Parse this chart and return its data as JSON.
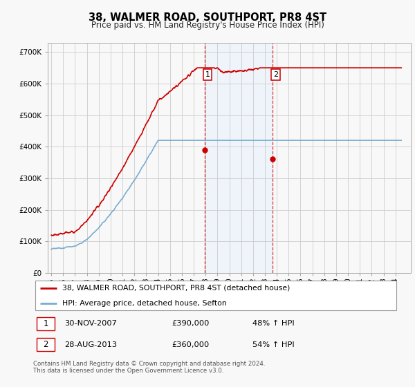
{
  "title": "38, WALMER ROAD, SOUTHPORT, PR8 4ST",
  "subtitle": "Price paid vs. HM Land Registry's House Price Index (HPI)",
  "ylabel_ticks": [
    "£0",
    "£100K",
    "£200K",
    "£300K",
    "£400K",
    "£500K",
    "£600K",
    "£700K"
  ],
  "ytick_values": [
    0,
    100000,
    200000,
    300000,
    400000,
    500000,
    600000,
    700000
  ],
  "ylim": [
    0,
    730000
  ],
  "xlim_start": 1994.7,
  "xlim_end": 2025.3,
  "sale1_date": 2007.92,
  "sale1_price": 390000,
  "sale2_date": 2013.67,
  "sale2_price": 360000,
  "legend_line1": "38, WALMER ROAD, SOUTHPORT, PR8 4ST (detached house)",
  "legend_line2": "HPI: Average price, detached house, Sefton",
  "copyright": "Contains HM Land Registry data © Crown copyright and database right 2024.\nThis data is licensed under the Open Government Licence v3.0.",
  "red_color": "#cc0000",
  "blue_color": "#7aabcf",
  "shade_color": "#ddeeff",
  "background_color": "#f8f8f8",
  "grid_color": "#cccccc"
}
